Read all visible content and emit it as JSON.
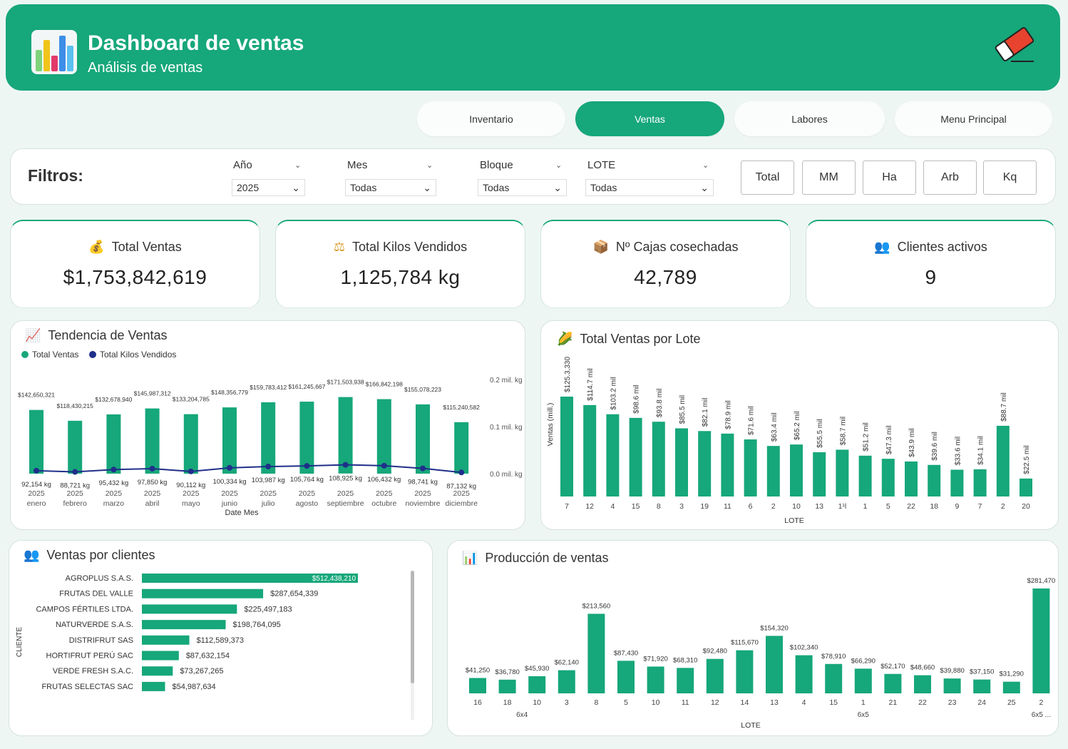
{
  "header": {
    "title": "Dashboard de ventas",
    "subtitle": "Análisis de ventas",
    "logo_icon": "bar-chart-icon",
    "action_icon": "eraser-icon"
  },
  "nav": [
    {
      "label": "Inventario"
    },
    {
      "label": "Ventas",
      "active": true
    },
    {
      "label": "Labores"
    },
    {
      "label": "Menu Principal"
    }
  ],
  "filters": {
    "title": "Filtros:",
    "ano": {
      "label": "Año",
      "value": "2025"
    },
    "mes": {
      "label": "Mes",
      "value": "Todas"
    },
    "bloque": {
      "label": "Bloque",
      "value": "Todas"
    },
    "lote": {
      "label": "LOTE",
      "value": "Todas"
    },
    "buttons": [
      "Total",
      "MM",
      "Ha",
      "Arb",
      "Kq"
    ]
  },
  "kpis": [
    {
      "label": "Total Ventas",
      "value": "$1,753,842,619",
      "icon": "money-bag-icon"
    },
    {
      "label": "Total Kilos Vendidos",
      "value": "1,125,784 kg",
      "icon": "scale-icon"
    },
    {
      "label": "Nº Cajas cosechadas",
      "value": "42,789",
      "icon": "box-icon"
    },
    {
      "label": "Clientes activos",
      "value": "9",
      "icon": "users-icon"
    }
  ],
  "trend": {
    "title": "Tendencia de Ventas",
    "icon": "line-chart-icon",
    "legend": [
      "Total Ventas",
      "Total Kilos Vendidos"
    ],
    "colors": {
      "bar": "#16a77a",
      "line": "#1f2f8a"
    },
    "xlabel": "Date Mes",
    "right_ticks": [
      "0.2 mil. kg",
      "0.1 mil. kg",
      "0.0 mil. kg"
    ]
  },
  "lote_chart": {
    "title": "Total Ventas por Lote",
    "icon": "corn-icon",
    "ylabel": "Ventas (mill.)",
    "xlabel": "LOTE"
  },
  "clientes_chart": {
    "title": "Ventas por clientes",
    "icon": "users-icon",
    "ylabel": "CLIENTE"
  },
  "prod_chart": {
    "title": "Producción de ventas",
    "icon": "bar-chart-icon",
    "xlabel": "LOTE"
  },
  "chart_data": [
    {
      "type": "bar",
      "title": "Tendencia de Ventas",
      "categories": [
        "enero",
        "febrero",
        "marzo",
        "abril",
        "mayo",
        "junio",
        "julio",
        "agosto",
        "septiembre",
        "octubre",
        "noviembre",
        "diciembre"
      ],
      "year": "2025",
      "xlabel": "Date Mes",
      "series": [
        {
          "name": "Total Ventas",
          "type": "bar",
          "values": [
            142650321,
            118430215,
            132678940,
            145987312,
            133204785,
            148356779,
            159783412,
            161245667,
            171503938,
            166842198,
            155078223,
            115240582
          ],
          "labels": [
            "$142,650,321",
            "$118,430,215",
            "$132,678,940",
            "$145,987,312",
            "$133,204,785",
            "$148,356,779",
            "$159,783,412",
            "$161,245,667",
            "$171,503,938",
            "$166,842,198",
            "$155,078,223",
            "$115,240,582"
          ]
        },
        {
          "name": "Total Kilos Vendidos",
          "type": "line",
          "values": [
            92154,
            88721,
            95432,
            97850,
            90112,
            100334,
            103987,
            105764,
            108925,
            106432,
            98741,
            87132
          ],
          "labels": [
            "92,154 kg",
            "88,721 kg",
            "95,432 kg",
            "97,850 kg",
            "90,112 kg",
            "100,334 kg",
            "103,987 kg",
            "105,764 kg",
            "108,925 kg",
            "106,432 kg",
            "98,741 kg",
            "87,132 kg"
          ]
        }
      ]
    },
    {
      "type": "bar",
      "title": "Total Ventas por Lote",
      "ylabel": "Ventas (mill.)",
      "xlabel": "LOTE",
      "categories": [
        "7",
        "12",
        "4",
        "15",
        "8",
        "3",
        "19",
        "11",
        "6",
        "2",
        "10",
        "13",
        "1¹l",
        "1",
        "5",
        "22",
        "18",
        "9",
        "7",
        "2",
        "20"
      ],
      "values": [
        125.3,
        114.7,
        103.2,
        98.6,
        93.8,
        85.5,
        82.1,
        78.9,
        71.6,
        63.4,
        65.2,
        55.5,
        58.7,
        51.2,
        47.3,
        43.9,
        39.6,
        33.6,
        34.1,
        88.7,
        22.5
      ],
      "labels": [
        "$125.3,330",
        "$114.7 mil",
        "$103.2 mil",
        "$98.6 mil",
        "$93.8 mil",
        "$85.5 mil",
        "$82.1 mil",
        "$78.9 mil",
        "$71.6 mil",
        "$63.4 mil",
        "$65.2 mil",
        "$55.5 mil",
        "$58.7 mil",
        "$51.2 mil",
        "$47.3 mil",
        "$43.9 mil",
        "$39.6 mil",
        "$33.6 mil",
        "$34.1 mil",
        "$88.7 mil",
        "$22.5 mil"
      ]
    },
    {
      "type": "bar",
      "orientation": "horizontal",
      "title": "Ventas por clientes",
      "ylabel": "CLIENTE",
      "categories": [
        "AGROPLUS S.A.S.",
        "FRUTAS DEL VALLE",
        "CAMPOS FÉRTILES LTDA.",
        "NATURVERDE S.A.S.",
        "DISTRIFRUT SAS",
        "HORTIFRUT PERÚ SAC",
        "VERDE FRESH S.A.C.",
        "FRUTAS SELECTAS SAC"
      ],
      "values": [
        512438210,
        287654339,
        225497183,
        198764095,
        112589373,
        87632154,
        73267265,
        54987634
      ],
      "labels": [
        "$512,438,210",
        "$287,654,339",
        "$225,497,183",
        "$198,764,095",
        "$112,589,373",
        "$87,632,154",
        "$73,267,265",
        "$54,987,634"
      ]
    },
    {
      "type": "bar",
      "title": "Producción de ventas",
      "xlabel": "LOTE",
      "categories": [
        "16",
        "18",
        "10",
        "3",
        "8",
        "5",
        "10",
        "11",
        "12",
        "14",
        "13",
        "4",
        "15",
        "1",
        "21",
        "22",
        "23",
        "24",
        "25",
        "2"
      ],
      "groups": [
        {
          "label": "6x4",
          "index": 2
        },
        {
          "label": "6x5",
          "index": 13
        },
        {
          "label": "6x5 ...",
          "index": 19
        }
      ],
      "values": [
        41250,
        36780,
        45930,
        62140,
        213560,
        87430,
        71920,
        68310,
        92480,
        115670,
        154320,
        102340,
        78910,
        66290,
        52170,
        48660,
        39880,
        37150,
        31290,
        281470
      ],
      "labels": [
        "$41,250",
        "$36,780",
        "$45,930",
        "$62,140",
        "$213,560",
        "$87,430",
        "$71,920",
        "$68,310",
        "$92,480",
        "$115,670",
        "$154,320",
        "$102,340",
        "$78,910",
        "$66,290",
        "$52,170",
        "$48,660",
        "$39,880",
        "$37,150",
        "$31,290",
        "$281,470"
      ]
    }
  ]
}
